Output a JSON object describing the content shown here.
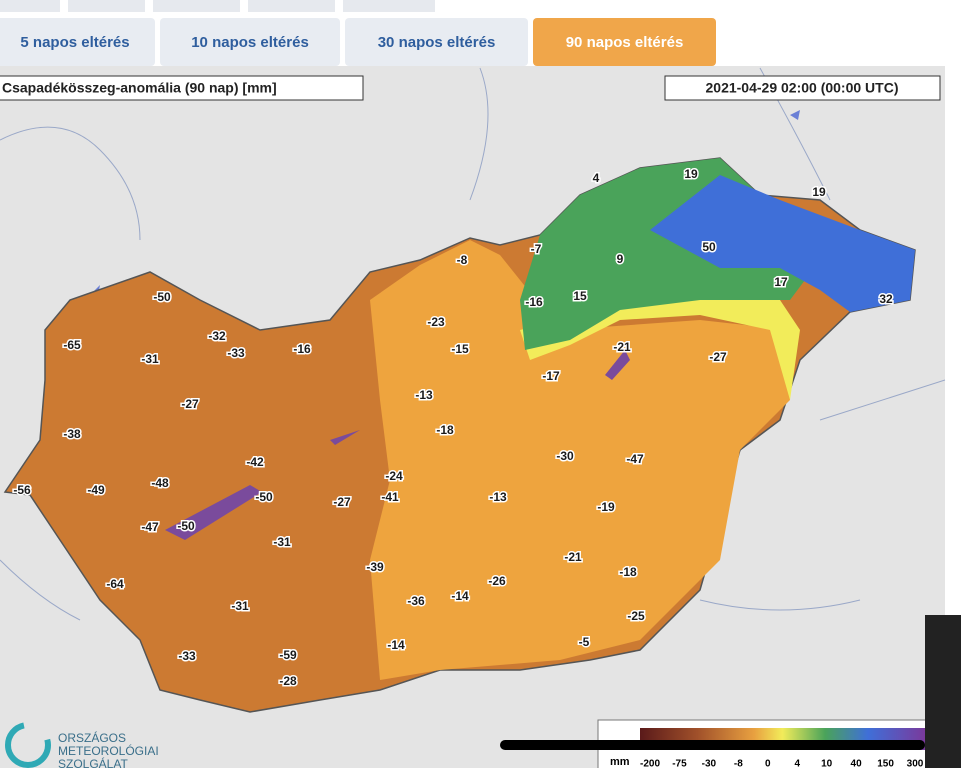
{
  "tabs": [
    "5 napos eltérés",
    "10 napos eltérés",
    "30 napos eltérés",
    "90 napos eltérés"
  ],
  "active_tab": 3,
  "map": {
    "title": "Csapadékösszeg-anomália (90 nap) [mm]",
    "timestamp": "2021-04-29 02:00 (00:00 UTC)",
    "labels": [
      -50,
      -65,
      -31,
      -32,
      -33,
      -16,
      -27,
      -38,
      -42,
      -48,
      -49,
      -56,
      -50,
      -47,
      -50,
      -27,
      -24,
      -41,
      -31,
      -64,
      -31,
      -33,
      -59,
      -28,
      -39,
      -36,
      -14,
      -26,
      -14,
      -5,
      -25,
      -18,
      -21,
      -19,
      -13,
      -30,
      -47,
      -18,
      -13,
      -15,
      -23,
      -8,
      -7,
      -16,
      15,
      9,
      4,
      19,
      50,
      19,
      17,
      32,
      -21,
      -27,
      -17
    ]
  },
  "logo": [
    "ORSZÁGOS",
    "METEOROLÓGIAI",
    "SZOLGÁLAT"
  ],
  "legend": {
    "unit": "mm",
    "ticks": [
      "-200",
      "-75",
      "-30",
      "-8",
      "0",
      "4",
      "10",
      "40",
      "150",
      "300"
    ]
  }
}
